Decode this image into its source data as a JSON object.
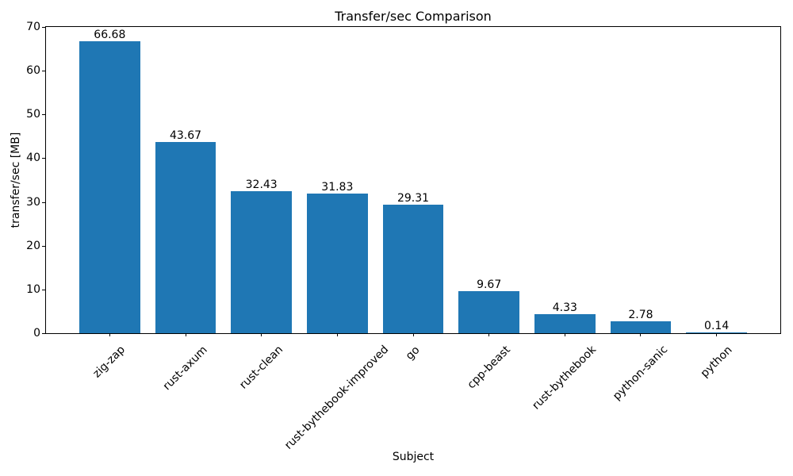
{
  "chart_data": {
    "type": "bar",
    "title": "Transfer/sec Comparison",
    "xlabel": "Subject",
    "ylabel": "transfer/sec [MB]",
    "categories": [
      "zig-zap",
      "rust-axum",
      "rust-clean",
      "rust-bythebook-improved",
      "go",
      "cpp-beast",
      "rust-bythebook",
      "python-sanic",
      "python"
    ],
    "values": [
      66.68,
      43.67,
      32.43,
      31.83,
      29.31,
      9.67,
      4.33,
      2.78,
      0.14
    ],
    "value_labels": [
      "66.68",
      "43.67",
      "32.43",
      "31.83",
      "29.31",
      "9.67",
      "4.33",
      "2.78",
      "0.14"
    ],
    "ylim": [
      0,
      70
    ],
    "yticks": [
      0,
      10,
      20,
      30,
      40,
      50,
      60,
      70
    ],
    "bar_color": "#1f77b4",
    "grid": false,
    "legend_position": "none",
    "x_tick_rotation_deg": 45
  }
}
